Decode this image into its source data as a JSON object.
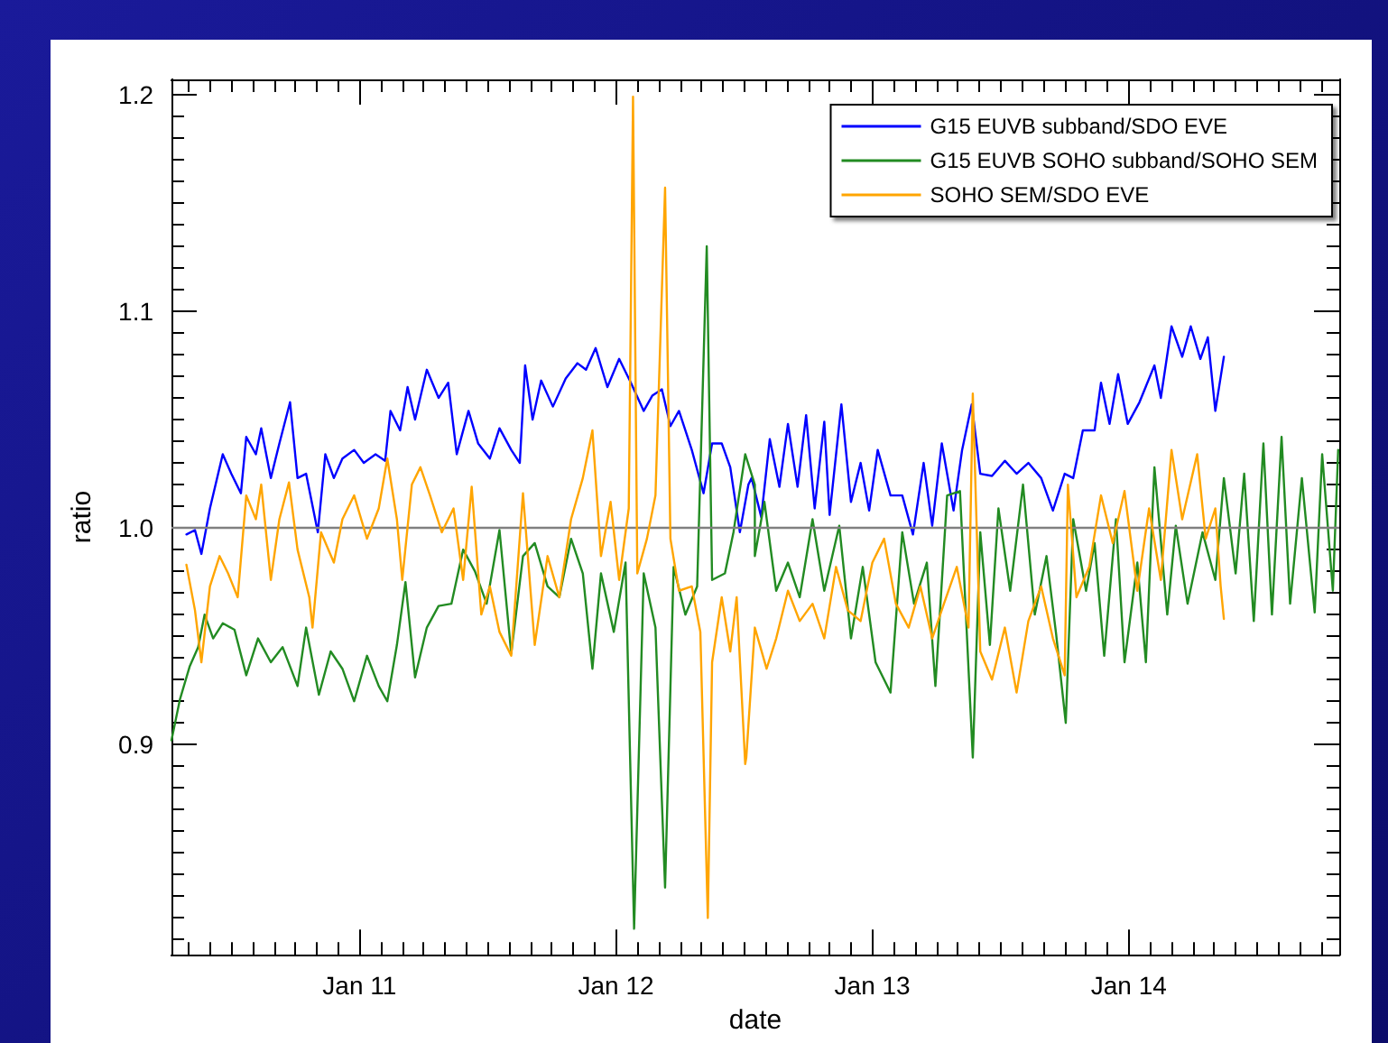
{
  "chart_data": {
    "type": "line",
    "xlabel": "date",
    "ylabel": "ratio",
    "xlim": [
      "--01-10T06:24",
      "--01-14T19:42"
    ],
    "xticks": [
      {
        "value": "--01-10T08:00",
        "label": null
      },
      {
        "value": "--01-10T10:00",
        "label": null
      },
      {
        "value": "--01-10T12:00",
        "label": null
      },
      {
        "value": "--01-10T14:00",
        "label": null
      },
      {
        "value": "--01-10T16:00",
        "label": null
      },
      {
        "value": "--01-10T18:00",
        "label": null
      },
      {
        "value": "--01-10T20:00",
        "label": null
      },
      {
        "value": "--01-10T22:00",
        "label": null
      },
      {
        "value": "--01-11",
        "label": "Jan 11"
      },
      {
        "value": "--01-11T02:00",
        "label": null
      },
      {
        "value": "--01-11T04:00",
        "label": null
      },
      {
        "value": "--01-11T06:00",
        "label": null
      },
      {
        "value": "--01-11T08:00",
        "label": null
      },
      {
        "value": "--01-11T10:00",
        "label": null
      },
      {
        "value": "--01-11T12:00",
        "label": null
      },
      {
        "value": "--01-11T14:00",
        "label": null
      },
      {
        "value": "--01-11T16:00",
        "label": null
      },
      {
        "value": "--01-11T18:00",
        "label": null
      },
      {
        "value": "--01-11T20:00",
        "label": null
      },
      {
        "value": "--01-11T22:00",
        "label": null
      },
      {
        "value": "--01-12",
        "label": "Jan 12"
      },
      {
        "value": "--01-12T02:00",
        "label": null
      },
      {
        "value": "--01-12T04:00",
        "label": null
      },
      {
        "value": "--01-12T06:00",
        "label": null
      },
      {
        "value": "--01-12T08:00",
        "label": null
      },
      {
        "value": "--01-12T10:00",
        "label": null
      },
      {
        "value": "--01-12T12:00",
        "label": null
      },
      {
        "value": "--01-12T14:00",
        "label": null
      },
      {
        "value": "--01-12T16:00",
        "label": null
      },
      {
        "value": "--01-12T18:00",
        "label": null
      },
      {
        "value": "--01-12T20:00",
        "label": null
      },
      {
        "value": "--01-12T22:00",
        "label": null
      },
      {
        "value": "--01-13",
        "label": "Jan 13"
      },
      {
        "value": "--01-13T02:00",
        "label": null
      },
      {
        "value": "--01-13T04:00",
        "label": null
      },
      {
        "value": "--01-13T06:00",
        "label": null
      },
      {
        "value": "--01-13T08:00",
        "label": null
      },
      {
        "value": "--01-13T10:00",
        "label": null
      },
      {
        "value": "--01-13T12:00",
        "label": null
      },
      {
        "value": "--01-13T14:00",
        "label": null
      },
      {
        "value": "--01-13T16:00",
        "label": null
      },
      {
        "value": "--01-13T18:00",
        "label": null
      },
      {
        "value": "--01-13T20:00",
        "label": null
      },
      {
        "value": "--01-13T22:00",
        "label": null
      },
      {
        "value": "--01-14",
        "label": "Jan 14"
      },
      {
        "value": "--01-14T02:00",
        "label": null
      },
      {
        "value": "--01-14T04:00",
        "label": null
      },
      {
        "value": "--01-14T06:00",
        "label": null
      },
      {
        "value": "--01-14T08:00",
        "label": null
      },
      {
        "value": "--01-14T10:00",
        "label": null
      },
      {
        "value": "--01-14T12:00",
        "label": null
      },
      {
        "value": "--01-14T14:00",
        "label": null
      },
      {
        "value": "--01-14T16:00",
        "label": null
      },
      {
        "value": "--01-14T18:00",
        "label": null
      }
    ],
    "ylim": [
      0.803,
      1.207
    ],
    "yticks": [
      {
        "value": 0.81,
        "label": null
      },
      {
        "value": 0.82,
        "label": null
      },
      {
        "value": 0.83,
        "label": null
      },
      {
        "value": 0.84,
        "label": null
      },
      {
        "value": 0.85,
        "label": null
      },
      {
        "value": 0.86,
        "label": null
      },
      {
        "value": 0.87,
        "label": null
      },
      {
        "value": 0.88,
        "label": null
      },
      {
        "value": 0.89,
        "label": null
      },
      0.9,
      {
        "value": 0.91,
        "label": null
      },
      {
        "value": 0.92,
        "label": null
      },
      {
        "value": 0.93,
        "label": null
      },
      {
        "value": 0.94,
        "label": null
      },
      {
        "value": 0.95,
        "label": null
      },
      {
        "value": 0.96,
        "label": null
      },
      {
        "value": 0.97,
        "label": null
      },
      {
        "value": 0.98,
        "label": null
      },
      {
        "value": 0.99,
        "label": null
      },
      {
        "value": 1.0,
        "label": "1.0"
      },
      {
        "value": 1.01,
        "label": null
      },
      {
        "value": 1.02,
        "label": null
      },
      {
        "value": 1.03,
        "label": null
      },
      {
        "value": 1.04,
        "label": null
      },
      {
        "value": 1.05,
        "label": null
      },
      {
        "value": 1.06,
        "label": null
      },
      {
        "value": 1.07,
        "label": null
      },
      {
        "value": 1.08,
        "label": null
      },
      {
        "value": 1.09,
        "label": null
      },
      1.1,
      {
        "value": 1.11,
        "label": null
      },
      {
        "value": 1.12,
        "label": null
      },
      {
        "value": 1.13,
        "label": null
      },
      {
        "value": 1.14,
        "label": null
      },
      {
        "value": 1.15,
        "label": null
      },
      {
        "value": 1.16,
        "label": null
      },
      {
        "value": 1.17,
        "label": null
      },
      {
        "value": 1.18,
        "label": null
      },
      {
        "value": 1.19,
        "label": null
      },
      1.2
    ],
    "grid": false,
    "legend": "top right",
    "marker": "none",
    "line_style": "solid",
    "ref_lines": [
      {
        "axis": "y",
        "value": 1.0,
        "color": "#808080"
      }
    ],
    "series": [
      {
        "name": "G15 EUVB subband/SDO EVE",
        "color": "#0000ff",
        "x": [
          "--01-10T07:48",
          "--01-10T08:36",
          "--01-10T09:12",
          "--01-10T10:00",
          "--01-10T11:12",
          "--01-10T12:00",
          "--01-10T12:54",
          "--01-10T13:24",
          "--01-10T14:18",
          "--01-10T14:48",
          "--01-10T15:42",
          "--01-10T16:30",
          "--01-10T17:30",
          "--01-10T18:12",
          "--01-10T19:00",
          "--01-10T20:06",
          "--01-10T20:48",
          "--01-10T21:36",
          "--01-10T22:24",
          "--01-10T23:30",
          "--01-11T00:24",
          "--01-11T01:30",
          "--01-11T02:24",
          "--01-11T02:54",
          "--01-11T03:48",
          "--01-11T04:30",
          "--01-11T05:12",
          "--01-11T06:18",
          "--01-11T07:24",
          "--01-11T08:18",
          "--01-11T09:06",
          "--01-11T10:12",
          "--01-11T11:06",
          "--01-11T12:12",
          "--01-11T13:06",
          "--01-11T14:12",
          "--01-11T15:00",
          "--01-11T15:30",
          "--01-11T16:12",
          "--01-11T17:00",
          "--01-11T18:06",
          "--01-11T19:18",
          "--01-11T20:24",
          "--01-11T21:12",
          "--01-11T22:06",
          "--01-11T23:12",
          "--01-12T00:18",
          "--01-12T01:24",
          "--01-12T02:36",
          "--01-12T03:24",
          "--01-12T04:18",
          "--01-12T05:06",
          "--01-12T05:54",
          "--01-12T07:06",
          "--01-12T08:12",
          "--01-12T09:00",
          "--01-12T09:54",
          "--01-12T10:42",
          "--01-12T11:36",
          "--01-12T12:24",
          "--01-12T12:42",
          "--01-12T13:36",
          "--01-12T14:24",
          "--01-12T15:18",
          "--01-12T16:06",
          "--01-12T17:00",
          "--01-12T17:48",
          "--01-12T18:36",
          "--01-12T19:30",
          "--01-12T20:00",
          "--01-12T21:06",
          "--01-12T22:00",
          "--01-12T22:54",
          "--01-12T23:42",
          "--01-13T00:30",
          "--01-13T01:42",
          "--01-13T02:48",
          "--01-13T03:48",
          "--01-13T04:48",
          "--01-13T05:36",
          "--01-13T06:30",
          "--01-13T07:36",
          "--01-13T08:24",
          "--01-13T09:18",
          "--01-13T10:06",
          "--01-13T11:12",
          "--01-13T12:24",
          "--01-13T13:30",
          "--01-13T14:36",
          "--01-13T15:48",
          "--01-13T16:54",
          "--01-13T18:00",
          "--01-13T18:48",
          "--01-13T19:42",
          "--01-13T20:48",
          "--01-13T21:24",
          "--01-13T22:12",
          "--01-13T23:00",
          "--01-13T23:54",
          "--01-14T01:00",
          "--01-14T02:24",
          "--01-14T03:00",
          "--01-14T04:00",
          "--01-14T05:00",
          "--01-14T05:48",
          "--01-14T06:42",
          "--01-14T07:24",
          "--01-14T08:06",
          "--01-14T08:54"
        ],
        "values": [
          0.997,
          0.999,
          0.988,
          1.009,
          1.034,
          1.025,
          1.016,
          1.042,
          1.034,
          1.046,
          1.023,
          1.039,
          1.058,
          1.023,
          1.025,
          0.998,
          1.034,
          1.023,
          1.032,
          1.036,
          1.03,
          1.034,
          1.031,
          1.054,
          1.045,
          1.065,
          1.05,
          1.073,
          1.06,
          1.067,
          1.034,
          1.054,
          1.039,
          1.032,
          1.046,
          1.036,
          1.03,
          1.075,
          1.05,
          1.068,
          1.056,
          1.069,
          1.076,
          1.073,
          1.083,
          1.065,
          1.078,
          1.067,
          1.054,
          1.061,
          1.064,
          1.047,
          1.054,
          1.036,
          1.016,
          1.039,
          1.039,
          1.028,
          0.998,
          1.02,
          1.023,
          1.005,
          1.041,
          1.019,
          1.048,
          1.019,
          1.052,
          1.009,
          1.049,
          1.006,
          1.057,
          1.012,
          1.03,
          1.008,
          1.036,
          1.015,
          1.015,
          0.997,
          1.03,
          1.001,
          1.039,
          1.008,
          1.036,
          1.057,
          1.025,
          1.024,
          1.031,
          1.025,
          1.03,
          1.023,
          1.008,
          1.025,
          1.023,
          1.045,
          1.045,
          1.067,
          1.048,
          1.071,
          1.048,
          1.058,
          1.075,
          1.06,
          1.093,
          1.079,
          1.093,
          1.078,
          1.088,
          1.054,
          1.079
        ]
      },
      {
        "name": "G15 EUVB SOHO subband/SOHO SEM",
        "color": "#228b22",
        "x": [
          "--01-10T06:24",
          "--01-10T07:12",
          "--01-10T08:06",
          "--01-10T08:54",
          "--01-10T09:30",
          "--01-10T10:18",
          "--01-10T11:12",
          "--01-10T12:18",
          "--01-10T13:24",
          "--01-10T14:30",
          "--01-10T15:42",
          "--01-10T16:48",
          "--01-10T18:12",
          "--01-10T19:00",
          "--01-10T20:12",
          "--01-10T21:18",
          "--01-10T22:24",
          "--01-10T23:30",
          "--01-11T00:42",
          "--01-11T01:48",
          "--01-11T02:36",
          "--01-11T03:30",
          "--01-11T04:18",
          "--01-11T05:12",
          "--01-11T06:18",
          "--01-11T07:24",
          "--01-11T08:36",
          "--01-11T09:42",
          "--01-11T10:48",
          "--01-11T11:54",
          "--01-11T13:06",
          "--01-11T14:12",
          "--01-11T15:18",
          "--01-11T16:24",
          "--01-11T17:36",
          "--01-11T18:42",
          "--01-11T19:48",
          "--01-11T20:54",
          "--01-11T21:48",
          "--01-11T22:36",
          "--01-11T23:48",
          "--01-12T00:54",
          "--01-12T01:42",
          "--01-12T02:36",
          "--01-12T03:42",
          "--01-12T04:36",
          "--01-12T05:24",
          "--01-12T06:30",
          "--01-12T07:36",
          "--01-12T08:30",
          "--01-12T09:00",
          "--01-12T10:12",
          "--01-12T11:00",
          "--01-12T12:06",
          "--01-12T13:00",
          "--01-12T13:00",
          "--01-12T13:54",
          "--01-12T15:00",
          "--01-12T16:06",
          "--01-12T17:12",
          "--01-12T18:24",
          "--01-12T19:30",
          "--01-12T20:54",
          "--01-12T22:00",
          "--01-12T23:06",
          "--01-13T00:18",
          "--01-13T01:42",
          "--01-13T02:48",
          "--01-13T03:54",
          "--01-13T05:06",
          "--01-13T05:54",
          "--01-13T07:00",
          "--01-13T08:12",
          "--01-13T09:24",
          "--01-13T10:06",
          "--01-13T11:00",
          "--01-13T11:48",
          "--01-13T12:54",
          "--01-13T14:06",
          "--01-13T15:12",
          "--01-13T16:18",
          "--01-13T17:12",
          "--01-13T18:06",
          "--01-13T18:48",
          "--01-13T20:00",
          "--01-13T20:48",
          "--01-13T21:42",
          "--01-13T22:48",
          "--01-13T23:36",
          "--01-14T00:48",
          "--01-14T01:36",
          "--01-14T02:24",
          "--01-14T03:36",
          "--01-14T04:24",
          "--01-14T05:30",
          "--01-14T06:54",
          "--01-14T08:06",
          "--01-14T08:54",
          "--01-14T10:00",
          "--01-14T10:48",
          "--01-14T11:42",
          "--01-14T12:36",
          "--01-14T13:24",
          "--01-14T14:18",
          "--01-14T15:06",
          "--01-14T16:12",
          "--01-14T17:24",
          "--01-14T18:06",
          "--01-14T19:06",
          "--01-14T19:36"
        ],
        "values": [
          0.902,
          0.921,
          0.936,
          0.945,
          0.96,
          0.949,
          0.956,
          0.953,
          0.932,
          0.949,
          0.938,
          0.945,
          0.927,
          0.954,
          0.923,
          0.943,
          0.935,
          0.92,
          0.941,
          0.927,
          0.92,
          0.946,
          0.975,
          0.931,
          0.954,
          0.964,
          0.965,
          0.99,
          0.98,
          0.965,
          0.999,
          0.942,
          0.987,
          0.993,
          0.973,
          0.968,
          0.995,
          0.979,
          0.935,
          0.979,
          0.952,
          0.984,
          0.815,
          0.979,
          0.954,
          0.834,
          0.982,
          0.96,
          0.973,
          1.13,
          0.976,
          0.979,
          0.998,
          1.034,
          1.02,
          0.987,
          1.012,
          0.971,
          0.984,
          0.968,
          1.004,
          0.971,
          1.001,
          0.949,
          0.982,
          0.938,
          0.924,
          0.998,
          0.965,
          0.984,
          0.927,
          1.015,
          1.017,
          0.894,
          0.998,
          0.946,
          1.009,
          0.971,
          1.02,
          0.96,
          0.987,
          0.951,
          0.91,
          1.004,
          0.971,
          0.993,
          0.941,
          1.004,
          0.938,
          0.984,
          0.938,
          1.028,
          0.96,
          1.001,
          0.965,
          0.998,
          0.976,
          1.023,
          0.979,
          1.025,
          0.957,
          1.039,
          0.96,
          1.042,
          0.965,
          1.023,
          0.961,
          1.034,
          0.971,
          1.036
        ]
      },
      {
        "name": "SOHO SEM/SDO EVE",
        "color": "#ffa500",
        "x": [
          "--01-10T07:48",
          "--01-10T08:36",
          "--01-10T09:12",
          "--01-10T10:00",
          "--01-10T10:54",
          "--01-10T11:42",
          "--01-10T12:36",
          "--01-10T13:24",
          "--01-10T14:18",
          "--01-10T14:48",
          "--01-10T15:42",
          "--01-10T16:30",
          "--01-10T17:24",
          "--01-10T18:12",
          "--01-10T19:18",
          "--01-10T19:36",
          "--01-10T20:24",
          "--01-10T21:36",
          "--01-10T22:24",
          "--01-10T23:30",
          "--01-11T00:42",
          "--01-11T01:48",
          "--01-11T02:36",
          "--01-11T03:30",
          "--01-11T04:00",
          "--01-11T04:54",
          "--01-11T05:42",
          "--01-11T06:36",
          "--01-11T07:42",
          "--01-11T08:48",
          "--01-11T09:42",
          "--01-11T10:30",
          "--01-11T11:24",
          "--01-11T12:12",
          "--01-11T13:06",
          "--01-11T14:12",
          "--01-11T15:18",
          "--01-11T16:24",
          "--01-11T17:36",
          "--01-11T18:42",
          "--01-11T19:48",
          "--01-11T20:54",
          "--01-11T21:48",
          "--01-11T22:36",
          "--01-11T23:30",
          "--01-12T00:18",
          "--01-12T01:12",
          "--01-12T01:36",
          "--01-12T02:00",
          "--01-12T02:54",
          "--01-12T03:42",
          "--01-12T04:36",
          "--01-12T05:06",
          "--01-12T05:54",
          "--01-12T07:06",
          "--01-12T07:54",
          "--01-12T08:36",
          "--01-12T09:00",
          "--01-12T09:54",
          "--01-12T10:42",
          "--01-12T11:18",
          "--01-12T12:06",
          "--01-12T12:12",
          "--01-12T13:00",
          "--01-12T14:06",
          "--01-12T15:00",
          "--01-12T16:06",
          "--01-12T17:12",
          "--01-12T18:24",
          "--01-12T19:30",
          "--01-12T20:36",
          "--01-12T21:42",
          "--01-12T22:54",
          "--01-13T00:00",
          "--01-13T01:06",
          "--01-13T02:12",
          "--01-13T03:24",
          "--01-13T04:30",
          "--01-13T05:36",
          "--01-13T06:42",
          "--01-13T07:54",
          "--01-13T09:00",
          "--01-13T09:24",
          "--01-13T10:06",
          "--01-13T11:12",
          "--01-13T12:24",
          "--01-13T13:30",
          "--01-13T14:36",
          "--01-13T15:48",
          "--01-13T16:54",
          "--01-13T18:00",
          "--01-13T18:18",
          "--01-13T19:06",
          "--01-13T20:18",
          "--01-13T21:24",
          "--01-13T22:30",
          "--01-13T23:36",
          "--01-14T00:48",
          "--01-14T01:54",
          "--01-14T03:00",
          "--01-14T04:00",
          "--01-14T05:00",
          "--01-14T06:24",
          "--01-14T07:12",
          "--01-14T08:06",
          "--01-14T08:36",
          "--01-14T08:54"
        ],
        "values": [
          0.983,
          0.962,
          0.938,
          0.973,
          0.987,
          0.979,
          0.968,
          1.015,
          1.004,
          1.02,
          0.976,
          1.004,
          1.021,
          0.99,
          0.968,
          0.954,
          0.998,
          0.984,
          1.004,
          1.015,
          0.995,
          1.009,
          1.032,
          1.004,
          0.976,
          1.02,
          1.028,
          1.015,
          0.998,
          1.009,
          0.976,
          1.019,
          0.96,
          0.973,
          0.952,
          0.941,
          1.016,
          0.946,
          0.987,
          0.968,
          1.004,
          1.023,
          1.045,
          0.987,
          1.012,
          0.976,
          1.009,
          1.199,
          0.979,
          0.995,
          1.015,
          1.157,
          0.995,
          0.971,
          0.973,
          0.952,
          0.82,
          0.938,
          0.968,
          0.943,
          0.968,
          0.891,
          0.894,
          0.954,
          0.935,
          0.949,
          0.971,
          0.957,
          0.965,
          0.949,
          0.982,
          0.962,
          0.957,
          0.984,
          0.995,
          0.965,
          0.954,
          0.973,
          0.949,
          0.965,
          0.982,
          0.954,
          1.062,
          0.943,
          0.93,
          0.954,
          0.924,
          0.957,
          0.973,
          0.949,
          0.932,
          1.02,
          0.968,
          0.982,
          1.015,
          0.993,
          1.017,
          0.971,
          1.009,
          0.976,
          1.036,
          1.004,
          1.034,
          0.995,
          1.009,
          0.973,
          0.958
        ]
      }
    ]
  }
}
